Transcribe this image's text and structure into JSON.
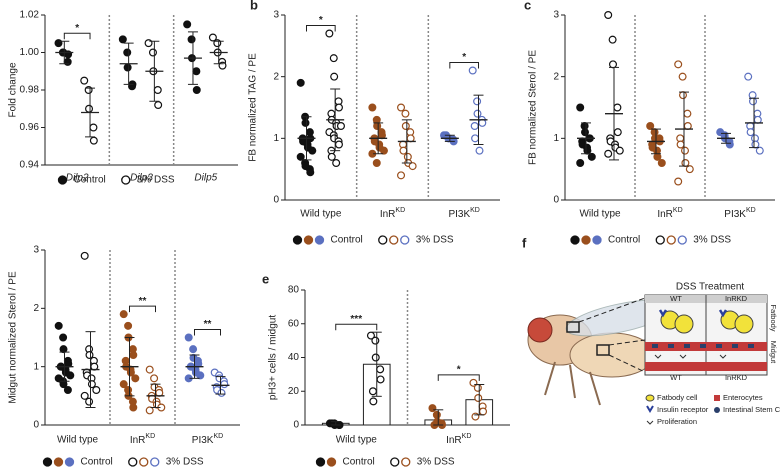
{
  "chart_data": [
    {
      "type": "strip",
      "ylabel": "Fold change",
      "ylim": [
        0.94,
        1.02
      ],
      "yticks": [
        0.94,
        0.96,
        0.98,
        {
          "value": 1,
          "label": "1.00"
        },
        1.02
      ],
      "italic_categories": true,
      "categories": [
        "Dilp2",
        "Dilp3",
        "Dilp5"
      ],
      "colors": [
        "#111111"
      ],
      "series": [
        {
          "name": "Control",
          "filled": true,
          "values": [
            [
              1.005,
              1.0,
              1.0,
              0.995,
              0.999
            ],
            [
              1.007,
              1.0,
              0.992,
              0.982,
              0.983
            ],
            [
              1.015,
              1.007,
              0.997,
              0.99,
              0.98
            ]
          ],
          "means": [
            1.0,
            0.994,
            0.997
          ],
          "sds": [
            0.006,
            0.011,
            0.014
          ]
        },
        {
          "name": "3% DSS",
          "filled": false,
          "values": [
            [
              0.985,
              0.98,
              0.97,
              0.96,
              0.953
            ],
            [
              1.005,
              1.0,
              0.99,
              0.98,
              0.972
            ],
            [
              1.008,
              1.005,
              1.0,
              0.995,
              0.993
            ]
          ],
          "means": [
            0.968,
            0.99,
            1.0
          ],
          "sds": [
            0.013,
            0.016,
            0.006
          ]
        }
      ],
      "significance": [
        "*",
        null,
        null
      ]
    },
    {
      "type": "strip",
      "panel": "b",
      "ylabel": "FB normalized TAG / PE",
      "ylim": [
        0,
        3
      ],
      "yticks": [
        0,
        1,
        2,
        3
      ],
      "categories": [
        "Wild type",
        {
          "name": "InR",
          "superscript": "KD"
        },
        {
          "name": "PI3K",
          "superscript": "KD"
        }
      ],
      "colors": [
        "#111111",
        "#9a4f1d",
        "#5b70c0"
      ],
      "series": [
        {
          "name": "Control",
          "filled": true,
          "values": [
            [
              1.9,
              1.35,
              1.25,
              1.1,
              1.0,
              1.0,
              0.95,
              0.9,
              0.85,
              0.8,
              0.7,
              0.6,
              0.55,
              0.5,
              0.45
            ],
            [
              1.5,
              1.3,
              1.2,
              1.1,
              1.05,
              1.0,
              0.95,
              0.9,
              0.85,
              0.8,
              0.75,
              0.6
            ],
            [
              1.05,
              1.0,
              1.0,
              0.98,
              0.95,
              1.05
            ]
          ],
          "means": [
            1.0,
            1.0,
            1.0
          ],
          "sds": [
            0.35,
            0.25,
            0.05
          ]
        },
        {
          "name": "3% DSS",
          "filled": false,
          "values": [
            [
              2.7,
              2.3,
              2.0,
              1.6,
              1.5,
              1.4,
              1.3,
              1.25,
              1.2,
              1.2,
              1.1,
              1.05,
              1.0,
              0.95,
              0.9,
              0.8,
              0.7,
              0.6
            ],
            [
              1.5,
              1.4,
              1.2,
              1.1,
              1.0,
              0.9,
              0.8,
              0.7,
              0.6,
              0.55,
              0.4
            ],
            [
              2.1,
              1.6,
              1.4,
              1.3,
              1.25,
              1.2,
              1.0,
              0.8
            ]
          ],
          "means": [
            1.3,
            0.95,
            1.3
          ],
          "sds": [
            0.5,
            0.35,
            0.4
          ]
        }
      ],
      "significance": [
        "*",
        null,
        "*"
      ]
    },
    {
      "type": "strip",
      "panel": "c",
      "ylabel": "FB normalized Sterol / PE",
      "ylim": [
        0,
        3
      ],
      "yticks": [
        0,
        1,
        2,
        3
      ],
      "categories": [
        "Wild type",
        {
          "name": "InR",
          "superscript": "KD"
        },
        {
          "name": "PI3K",
          "superscript": "KD"
        }
      ],
      "colors": [
        "#111111",
        "#9a4f1d",
        "#5b70c0"
      ],
      "series": [
        {
          "name": "Control",
          "filled": true,
          "values": [
            [
              1.5,
              1.2,
              1.1,
              1.0,
              1.0,
              0.95,
              0.9,
              0.85,
              0.8,
              0.7,
              0.6
            ],
            [
              1.2,
              1.1,
              1.0,
              1.0,
              0.95,
              0.9,
              0.85,
              0.8,
              0.7,
              0.6
            ],
            [
              1.1,
              1.05,
              1.0,
              0.95,
              0.9
            ]
          ],
          "means": [
            1.0,
            0.95,
            1.0
          ],
          "sds": [
            0.25,
            0.2,
            0.08
          ]
        },
        {
          "name": "3% DSS",
          "filled": false,
          "values": [
            [
              3.0,
              2.6,
              2.2,
              1.5,
              1.1,
              1.0,
              0.95,
              0.9,
              0.85,
              0.8,
              0.75
            ],
            [
              2.2,
              2.0,
              1.7,
              1.4,
              1.2,
              1.0,
              0.9,
              0.8,
              0.6,
              0.5,
              0.3
            ],
            [
              2.0,
              1.7,
              1.6,
              1.4,
              1.3,
              1.2,
              1.1,
              1.0,
              0.9,
              0.8
            ]
          ],
          "means": [
            1.4,
            1.15,
            1.25
          ],
          "sds": [
            0.75,
            0.6,
            0.4
          ]
        }
      ],
      "significance": [
        null,
        null,
        null
      ]
    },
    {
      "type": "strip",
      "ylabel": "Midgut normalized Sterol / PE",
      "ylim": [
        0,
        3
      ],
      "yticks": [
        0,
        1,
        2,
        3
      ],
      "categories": [
        "Wild type",
        {
          "name": "InR",
          "superscript": "KD"
        },
        {
          "name": "PI3K",
          "superscript": "KD"
        }
      ],
      "colors": [
        "#111111",
        "#9a4f1d",
        "#5b70c0"
      ],
      "series": [
        {
          "name": "Control",
          "filled": true,
          "values": [
            [
              1.7,
              1.5,
              1.3,
              1.1,
              1.05,
              1.0,
              1.0,
              0.95,
              0.9,
              0.85,
              0.8,
              0.75,
              0.7,
              0.6
            ],
            [
              1.9,
              1.7,
              1.5,
              1.3,
              1.2,
              1.1,
              1.0,
              0.95,
              0.9,
              0.8,
              0.7,
              0.6,
              0.5,
              0.4,
              0.3
            ],
            [
              1.5,
              1.3,
              1.15,
              1.1,
              1.05,
              1.0,
              1.0,
              0.95,
              0.9,
              0.85,
              0.8
            ]
          ],
          "means": [
            1.0,
            1.0,
            1.0
          ],
          "sds": [
            0.25,
            0.5,
            0.2
          ]
        },
        {
          "name": "3% DSS",
          "filled": false,
          "values": [
            [
              2.9,
              1.3,
              1.2,
              1.1,
              1.0,
              0.9,
              0.85,
              0.8,
              0.7,
              0.6,
              0.5,
              0.4
            ],
            [
              0.95,
              0.8,
              0.65,
              0.6,
              0.55,
              0.5,
              0.45,
              0.4,
              0.35,
              0.3,
              0.25
            ],
            [
              0.9,
              0.85,
              0.8,
              0.75,
              0.7,
              0.65,
              0.6,
              0.55
            ]
          ],
          "means": [
            0.95,
            0.5,
            0.68
          ],
          "sds": [
            0.65,
            0.2,
            0.15
          ]
        }
      ],
      "significance": [
        null,
        "**",
        "**"
      ]
    },
    {
      "type": "bar",
      "panel": "e",
      "ylabel": "pH3+ cells / midgut",
      "ylim": [
        0,
        80
      ],
      "yticks": [
        0,
        20,
        40,
        60,
        80
      ],
      "categories": [
        "Wild type",
        {
          "name": "InR",
          "superscript": "KD"
        }
      ],
      "colors": [
        "#111111",
        "#9a4f1d"
      ],
      "series": [
        {
          "name": "Control",
          "filled": true,
          "values": [
            [
              1,
              1,
              0,
              0,
              0,
              1
            ],
            [
              10,
              6,
              2,
              1,
              0,
              0
            ]
          ],
          "means": [
            1,
            3
          ],
          "sds": [
            1,
            6
          ]
        },
        {
          "name": "3% DSS",
          "filled": false,
          "values": [
            [
              53,
              50,
              40,
              33,
              27,
              20,
              14
            ],
            [
              25,
              22,
              16,
              11,
              8,
              5
            ]
          ],
          "means": [
            36,
            15
          ],
          "sds": [
            19,
            9
          ]
        }
      ],
      "significance": [
        "***",
        "*"
      ]
    }
  ],
  "diagram": {
    "panel": "f",
    "title": "DSS Treatment",
    "top_labels": [
      "WT",
      "InRKD"
    ],
    "bottom_labels": [
      "WT",
      "InRKD"
    ],
    "side_labels": [
      "Fatbody",
      "Midgut"
    ],
    "legend": [
      "Fatbody cell",
      "Insulin receptor",
      "Proliferation",
      "Enterocytes",
      "Intestinal Stem Cell"
    ]
  }
}
